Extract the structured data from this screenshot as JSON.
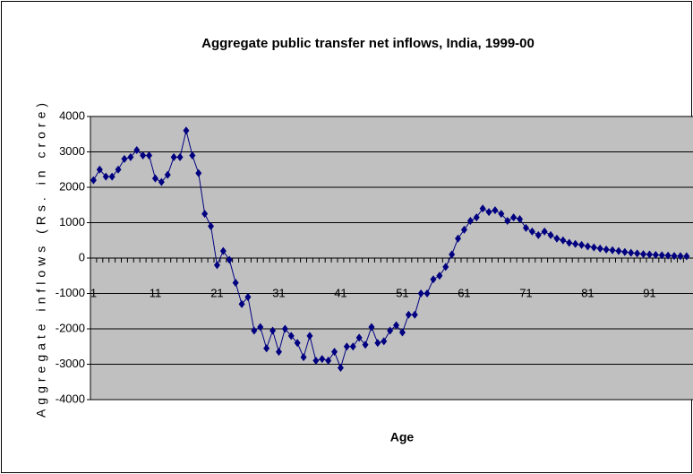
{
  "chart_data": {
    "type": "line",
    "title": "Aggregate public transfer net inflows, India, 1999-00",
    "x_label": "Age",
    "y_label": "Aggregate inflows (Rs. in crore)",
    "categories": [
      1,
      null,
      null,
      null,
      null,
      null,
      null,
      null,
      null,
      null,
      11,
      null,
      null,
      null,
      null,
      null,
      null,
      null,
      null,
      null,
      21,
      null,
      null,
      null,
      null,
      null,
      null,
      null,
      null,
      null,
      31,
      null,
      null,
      null,
      null,
      null,
      null,
      null,
      null,
      null,
      41,
      null,
      null,
      null,
      null,
      null,
      null,
      null,
      null,
      null,
      51,
      null,
      null,
      null,
      null,
      null,
      null,
      null,
      null,
      null,
      61,
      null,
      null,
      null,
      null,
      null,
      null,
      null,
      null,
      null,
      71,
      null,
      null,
      null,
      null,
      null,
      null,
      null,
      null,
      null,
      81,
      null,
      null,
      null,
      null,
      null,
      null,
      null,
      null,
      null,
      91,
      null,
      null,
      null,
      null,
      null,
      null
    ],
    "series": [
      {
        "color": "#000080",
        "values": [
          2200,
          2500,
          2300,
          2300,
          2500,
          2800,
          2850,
          3050,
          2900,
          2900,
          2250,
          2150,
          2350,
          2850,
          2850,
          3600,
          2900,
          2400,
          1250,
          900,
          -200,
          200,
          -50,
          -700,
          -1300,
          -1100,
          -2050,
          -1950,
          -2550,
          -2050,
          -2650,
          -2000,
          -2200,
          -2400,
          -2800,
          -2200,
          -2900,
          -2850,
          -2900,
          -2650,
          -3100,
          -2500,
          -2500,
          -2250,
          -2450,
          -1950,
          -2400,
          -2350,
          -2050,
          -1900,
          -2100,
          -1600,
          -1600,
          -1000,
          -1000,
          -600,
          -500,
          -250,
          100,
          550,
          800,
          1050,
          1150,
          1400,
          1300,
          1350,
          1250,
          1050,
          1150,
          1100,
          850,
          750,
          650,
          750,
          650,
          550,
          500,
          430,
          400,
          370,
          330,
          300,
          270,
          240,
          220,
          200,
          170,
          150,
          130,
          110,
          100,
          90,
          80,
          70,
          60,
          55,
          50
        ]
      }
    ],
    "ylim": [
      -4000,
      4000
    ],
    "yticks": [
      -4000,
      -3000,
      -2000,
      -1000,
      0,
      1000,
      2000,
      3000,
      4000
    ],
    "grid": true
  }
}
